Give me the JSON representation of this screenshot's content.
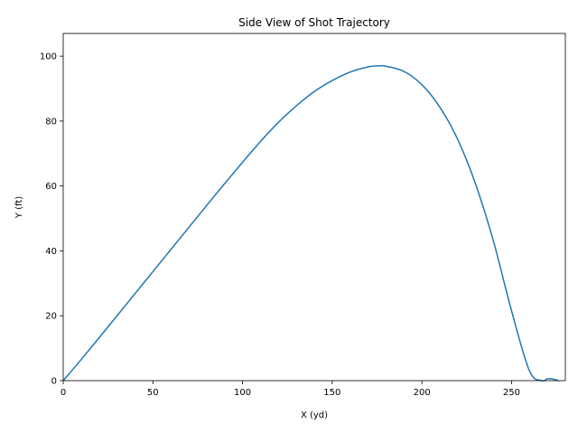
{
  "chart_data": {
    "type": "line",
    "title": "Side View of Shot Trajectory",
    "xlabel": "X (yd)",
    "ylabel": "Y (ft)",
    "xlim": [
      0,
      280
    ],
    "ylim": [
      0,
      107
    ],
    "xticks": [
      0,
      50,
      100,
      150,
      200,
      250
    ],
    "yticks": [
      0,
      20,
      40,
      60,
      80,
      100
    ],
    "grid": false,
    "series": [
      {
        "color": "#1f77b4",
        "x": [
          0,
          10,
          20,
          30,
          40,
          50,
          60,
          70,
          80,
          90,
          100,
          110,
          120,
          130,
          140,
          150,
          160,
          170,
          176,
          180,
          190,
          200,
          210,
          220,
          230,
          240,
          250,
          260,
          267,
          270,
          273,
          276
        ],
        "y": [
          0,
          6.5,
          13.2,
          20,
          26.8,
          33.6,
          40.4,
          47.2,
          54,
          60.7,
          67.3,
          73.7,
          79.6,
          84.7,
          89.1,
          92.5,
          95.1,
          96.7,
          97,
          96.9,
          95.3,
          91.2,
          84.3,
          74.3,
          60.5,
          42.8,
          21.5,
          3,
          0,
          0.6,
          0.5,
          0
        ]
      }
    ]
  }
}
